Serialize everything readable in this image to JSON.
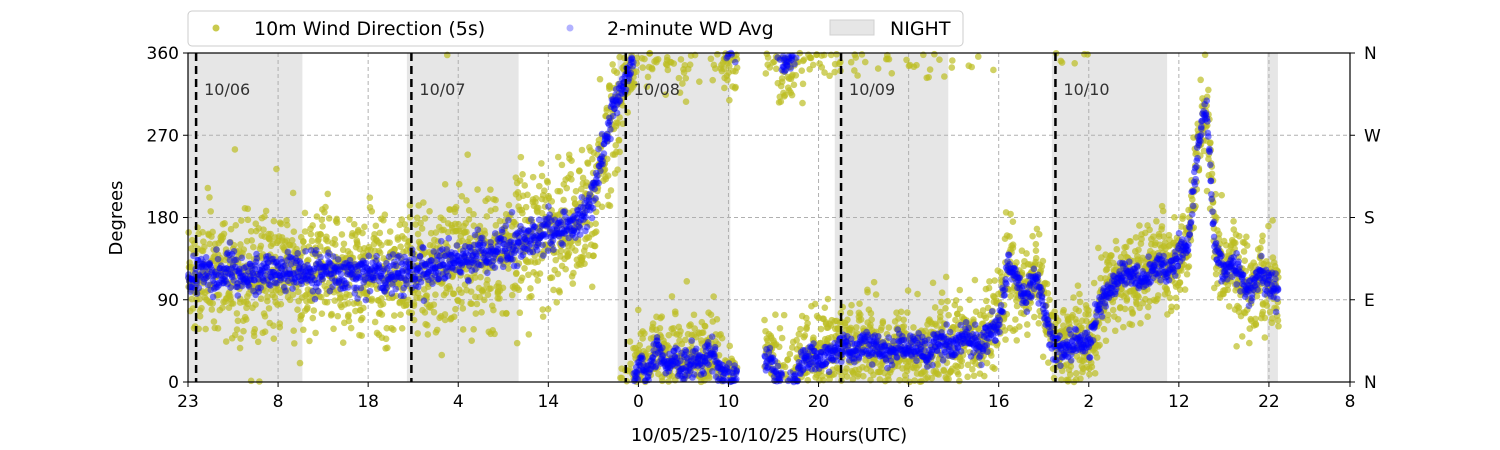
{
  "chart_data": {
    "type": "scatter",
    "xlabel": "10/05/25-10/10/25  Hours(UTC)",
    "ylabel": "Degrees",
    "ylim": [
      0,
      360
    ],
    "yticks": [
      0,
      90,
      180,
      270,
      360
    ],
    "right_yticks": [
      "N",
      "E",
      "S",
      "W",
      "N"
    ],
    "x_range_hours": [
      0,
      129
    ],
    "x_start_hour_utc": 23,
    "xtick_labels": [
      "23",
      "8",
      "18",
      "4",
      "14",
      "0",
      "10",
      "20",
      "6",
      "16",
      "2",
      "12",
      "22",
      "8"
    ],
    "grid": true,
    "legend_placement": "top-center-outside",
    "legend": [
      "10m Wind Direction (5s)",
      "2-minute WD Avg",
      "NIGHT"
    ],
    "day_markers": [
      {
        "label": "10/06",
        "hour": 0.9
      },
      {
        "label": "10/07",
        "hour": 24.8
      },
      {
        "label": "10/08",
        "hour": 48.6
      },
      {
        "label": "10/09",
        "hour": 72.5
      },
      {
        "label": "10/10",
        "hour": 96.3
      }
    ],
    "night_periods_hours": [
      [
        0,
        12.7
      ],
      [
        24.3,
        36.7
      ],
      [
        47.7,
        60.2
      ],
      [
        71.8,
        84.4
      ],
      [
        95.9,
        108.7
      ],
      [
        119.8,
        121.0
      ]
    ],
    "series": [
      {
        "name": "2-minute WD Avg (approx. hourly, deg)",
        "color": "#0000ff",
        "values": [
          115,
          118,
          120,
          118,
          120,
          122,
          118,
          120,
          117,
          120,
          118,
          120,
          122,
          118,
          115,
          120,
          122,
          118,
          115,
          118,
          120,
          118,
          115,
          118,
          120,
          122,
          120,
          125,
          128,
          130,
          132,
          135,
          138,
          140,
          145,
          150,
          150,
          155,
          158,
          160,
          162,
          165,
          170,
          175,
          185,
          200,
          250,
          290,
          320,
          340,
          20,
          10,
          40,
          15,
          30,
          10,
          25,
          20,
          40,
          10,
          5,
          null,
          null,
          null,
          25,
          20,
          350,
          355,
          20,
          30,
          25,
          30,
          35,
          40,
          30,
          45,
          40,
          35,
          30,
          40,
          35,
          40,
          30,
          45,
          40,
          35,
          50,
          45,
          40,
          55,
          60,
          130,
          110,
          90,
          120,
          80,
          40,
          35,
          40,
          45,
          40,
          80,
          100,
          110,
          120,
          115,
          110,
          125,
          130,
          120,
          140,
          150,
          250,
          300,
          140,
          120,
          130,
          110,
          100,
          120,
          110,
          100
        ]
      },
      {
        "name": "10m Wind Direction (5s) spread (approx. std, deg)",
        "color": "#bcbd22",
        "spread_before_hour_48": 35,
        "spread_after_hour_48": 25
      }
    ]
  },
  "colors": {
    "scatter": "#bcbd22",
    "avg": "#0000ff",
    "night": "#e6e6e6"
  }
}
